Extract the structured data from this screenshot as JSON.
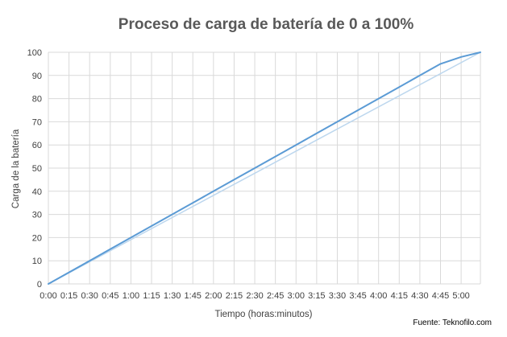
{
  "chart_data": {
    "type": "line",
    "title": "Proceso de carga de batería de 0 a 100%",
    "xlabel": "Tiempo (horas:minutos)",
    "ylabel": "Carga de la batería",
    "source": "Fuente: Teknofilo.com",
    "x_ticks": [
      "0:00",
      "0:15",
      "0:30",
      "0:45",
      "1:00",
      "1:15",
      "1:30",
      "1:45",
      "2:00",
      "2:15",
      "2:30",
      "2:45",
      "3:00",
      "3:15",
      "3:30",
      "3:45",
      "4:00",
      "4:15",
      "4:30",
      "4:45",
      "5:00"
    ],
    "y_ticks": [
      0,
      10,
      20,
      30,
      40,
      50,
      60,
      70,
      80,
      90,
      100
    ],
    "xlim_minutes": [
      0,
      314
    ],
    "ylim": [
      0,
      100
    ],
    "grid": "vertical and horizontal",
    "legend": "none",
    "series": [
      {
        "color": "#5b9bd5",
        "x_minutes": [
          0,
          15,
          30,
          45,
          60,
          75,
          90,
          105,
          120,
          135,
          150,
          165,
          180,
          195,
          210,
          225,
          240,
          255,
          270,
          285,
          300,
          314
        ],
        "values": [
          0,
          5,
          10,
          15,
          20,
          25,
          30,
          35,
          40,
          45,
          50,
          55,
          60,
          65,
          70,
          75,
          80,
          85,
          90,
          95,
          98,
          100
        ]
      },
      {
        "color": "#bdd7ee",
        "x_minutes": [
          0,
          314
        ],
        "values": [
          0,
          100
        ]
      }
    ]
  }
}
